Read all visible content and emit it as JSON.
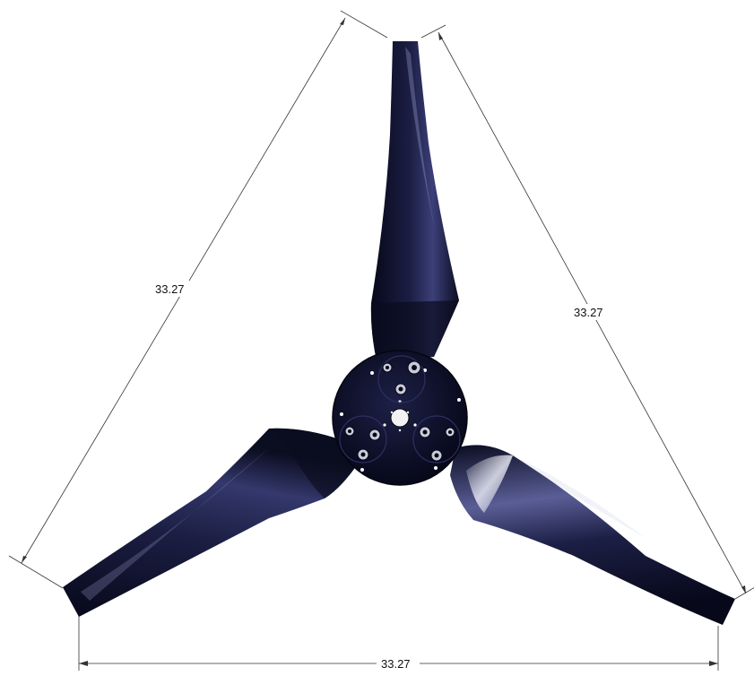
{
  "dimensions": {
    "left_span": "33.27",
    "right_span": "33.27",
    "bottom_span": "33.27"
  },
  "colors": {
    "blade_dark": "#0b0d1c",
    "blade_mid": "#2a2e5a",
    "blade_highlight": "#c9cbe0",
    "hub": "#0e1022",
    "background": "#ffffff"
  }
}
